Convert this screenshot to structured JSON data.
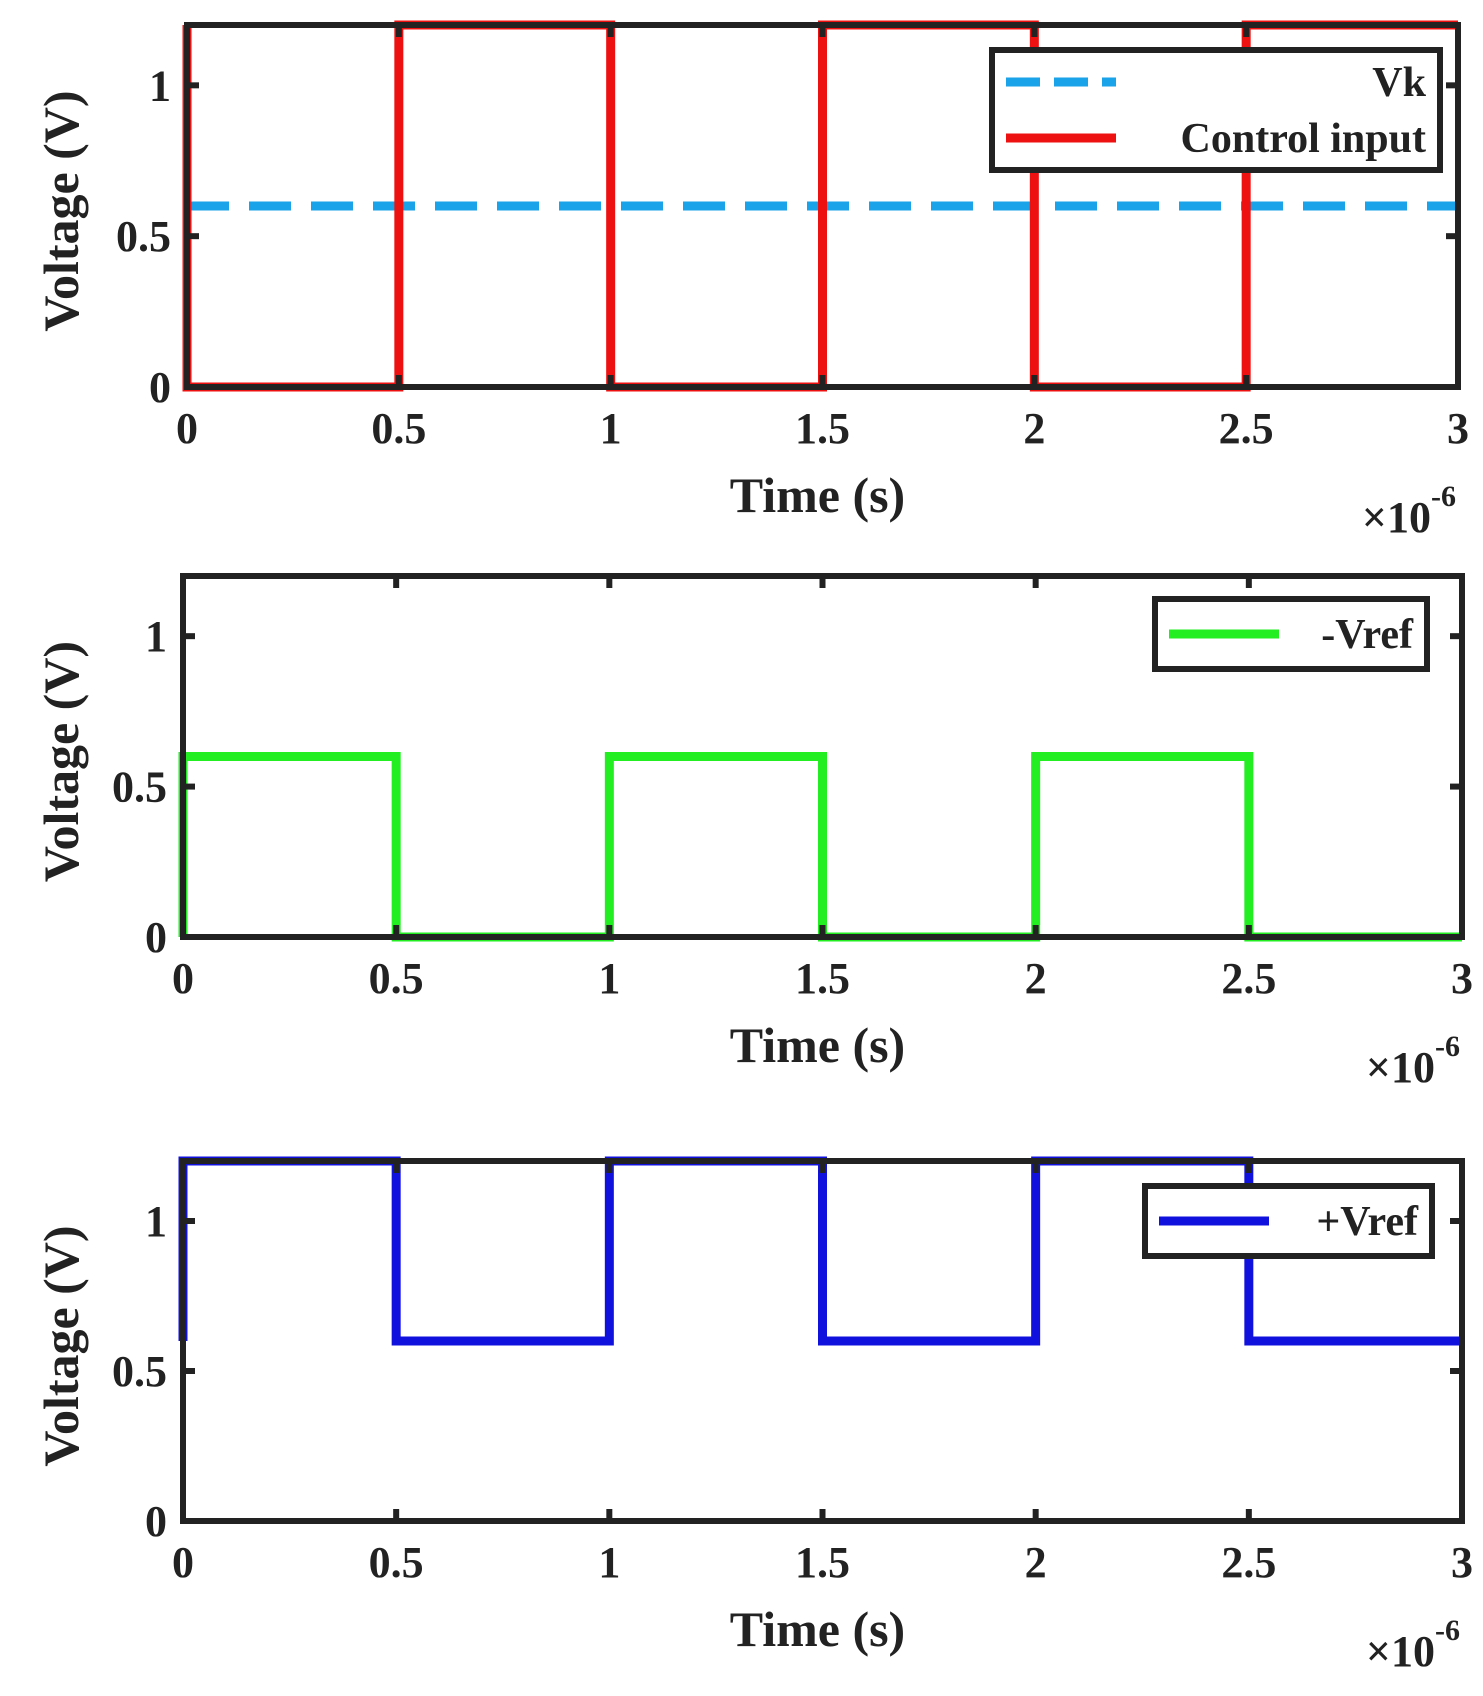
{
  "chart_data": [
    {
      "type": "line",
      "xlabel": "Time (s)",
      "ylabel": "Voltage (V)",
      "x_multiplier": "×10",
      "x_multiplier_exponent": "-6",
      "xlim": [
        0,
        3
      ],
      "ylim": [
        0,
        1.2
      ],
      "xticks": [
        0,
        0.5,
        1,
        1.5,
        2,
        2.5,
        3
      ],
      "xtick_labels": [
        "0",
        "0.5",
        "1",
        "1.5",
        "2",
        "2.5",
        "3"
      ],
      "yticks": [
        0,
        0.5,
        1
      ],
      "ytick_labels": [
        "0",
        "0.5",
        "1"
      ],
      "legend_position": "top-right",
      "series": [
        {
          "name": "Vk",
          "color": "#1aa3e8",
          "style": "dashed",
          "x": [
            0,
            3
          ],
          "y": [
            0.6,
            0.6
          ]
        },
        {
          "name": "Control input",
          "color": "#ee1111",
          "style": "solid",
          "x": [
            0,
            0,
            0.5,
            0.5,
            1,
            1,
            1.5,
            1.5,
            2,
            2,
            2.5,
            2.5,
            3
          ],
          "y": [
            1.2,
            0,
            0,
            1.2,
            1.2,
            0,
            0,
            1.2,
            1.2,
            0,
            0,
            1.2,
            1.2
          ]
        }
      ]
    },
    {
      "type": "line",
      "xlabel": "Time (s)",
      "ylabel": "Voltage (V)",
      "x_multiplier": "×10",
      "x_multiplier_exponent": "-6",
      "xlim": [
        0,
        3
      ],
      "ylim": [
        0,
        1.2
      ],
      "xticks": [
        0,
        0.5,
        1,
        1.5,
        2,
        2.5,
        3
      ],
      "xtick_labels": [
        "0",
        "0.5",
        "1",
        "1.5",
        "2",
        "2.5",
        "3"
      ],
      "yticks": [
        0,
        0.5,
        1
      ],
      "ytick_labels": [
        "0",
        "0.5",
        "1"
      ],
      "legend_position": "top-right",
      "series": [
        {
          "name": "-Vref",
          "color": "#22ee22",
          "style": "solid",
          "x": [
            0,
            0,
            0.5,
            0.5,
            1,
            1,
            1.5,
            1.5,
            2,
            2,
            2.5,
            2.5,
            3
          ],
          "y": [
            0,
            0.6,
            0.6,
            0,
            0,
            0.6,
            0.6,
            0,
            0,
            0.6,
            0.6,
            0,
            0
          ]
        }
      ]
    },
    {
      "type": "line",
      "xlabel": "Time (s)",
      "ylabel": "Voltage (V)",
      "x_multiplier": "×10",
      "x_multiplier_exponent": "-6",
      "xlim": [
        0,
        3
      ],
      "ylim": [
        0,
        1.2
      ],
      "xticks": [
        0,
        0.5,
        1,
        1.5,
        2,
        2.5,
        3
      ],
      "xtick_labels": [
        "0",
        "0.5",
        "1",
        "1.5",
        "2",
        "2.5",
        "3"
      ],
      "yticks": [
        0,
        0.5,
        1
      ],
      "ytick_labels": [
        "0",
        "0.5",
        "1"
      ],
      "legend_position": "top-right",
      "series": [
        {
          "name": "+Vref",
          "color": "#1111dd",
          "style": "solid",
          "x": [
            0,
            0,
            0.5,
            0.5,
            1,
            1,
            1.5,
            1.5,
            2,
            2,
            2.5,
            2.5,
            3
          ],
          "y": [
            0.6,
            1.2,
            1.2,
            0.6,
            0.6,
            1.2,
            1.2,
            0.6,
            0.6,
            1.2,
            1.2,
            0.6,
            0.6
          ]
        }
      ]
    }
  ]
}
